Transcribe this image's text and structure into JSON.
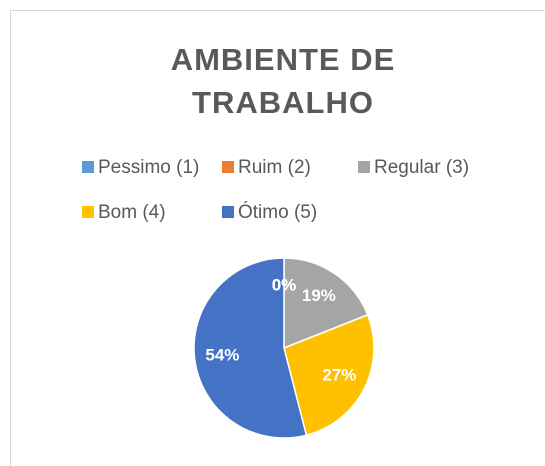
{
  "chart_data": {
    "type": "pie",
    "title": "AMBIENTE DE TRABALHO",
    "categories": [
      "Pessimo (1)",
      "Ruim (2)",
      "Regular (3)",
      "Bom (4)",
      "Ótimo (5)"
    ],
    "values": [
      0,
      0,
      19,
      27,
      54
    ],
    "value_labels": [
      "0%",
      "0%",
      "19%",
      "27%",
      "54%"
    ],
    "colors": [
      "#5b9bd5",
      "#ed7d31",
      "#a5a5a5",
      "#ffc000",
      "#4472c4"
    ],
    "legend": "top"
  }
}
